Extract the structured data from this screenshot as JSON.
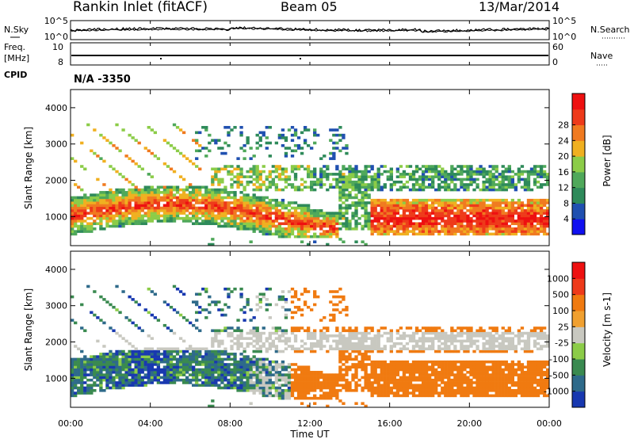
{
  "header": {
    "station": "Rankin Inlet (fitACF)",
    "beam": "Beam 05",
    "date": "13/Mar/2014"
  },
  "noise_panel": {
    "left_label": "N.Sky",
    "right_label": "N.Search",
    "left_ticks": [
      "10^5",
      "10^0"
    ],
    "right_ticks": [
      "10^5",
      "10^0"
    ]
  },
  "freq_panel": {
    "left_label_top": "Freq.",
    "left_label_unit": "[MHz]",
    "left_ticks": [
      "10",
      "8"
    ],
    "right_label": "Nave",
    "right_ticks": [
      "60",
      "0"
    ]
  },
  "cpid": {
    "label": "CPID",
    "value": "N/A -3350"
  },
  "chart_data": [
    {
      "type": "heatmap",
      "name": "power",
      "ylabel": "Slant Range [km]",
      "yticks": [
        "1000",
        "2000",
        "3000",
        "4000"
      ],
      "ylim": [
        200,
        4500
      ],
      "xlabel": "Time UT",
      "xticks": [
        "00:00",
        "04:00",
        "08:00",
        "12:00",
        "16:00",
        "20:00",
        "00:00"
      ],
      "colorbar": {
        "label": "Power [dB]",
        "ticks": [
          "4",
          "8",
          "12",
          "16",
          "20",
          "24",
          "28"
        ],
        "colors": [
          "#1010f0",
          "#2050b0",
          "#2e8a5a",
          "#4fa85a",
          "#8ccc48",
          "#f0b020",
          "#f07a20",
          "#ee3a1a",
          "#ee1010"
        ]
      }
    },
    {
      "type": "heatmap",
      "name": "velocity",
      "ylabel": "Slant Range [km]",
      "yticks": [
        "1000",
        "2000",
        "3000",
        "4000"
      ],
      "ylim": [
        200,
        4500
      ],
      "xlabel": "Time UT",
      "xticks": [
        "00:00",
        "04:00",
        "08:00",
        "12:00",
        "16:00",
        "20:00",
        "00:00"
      ],
      "colorbar": {
        "label": "Velocity [m s-1]",
        "ticks": [
          "1000",
          "500",
          "100",
          "25",
          "-25",
          "-100",
          "-500",
          "-1000"
        ],
        "colors": [
          "#1838b0",
          "#2e6a8a",
          "#3a8a50",
          "#8ccc48",
          "#c8c8c0",
          "#f0a030",
          "#f07a10",
          "#ee3a1a",
          "#ee1010"
        ]
      }
    }
  ]
}
